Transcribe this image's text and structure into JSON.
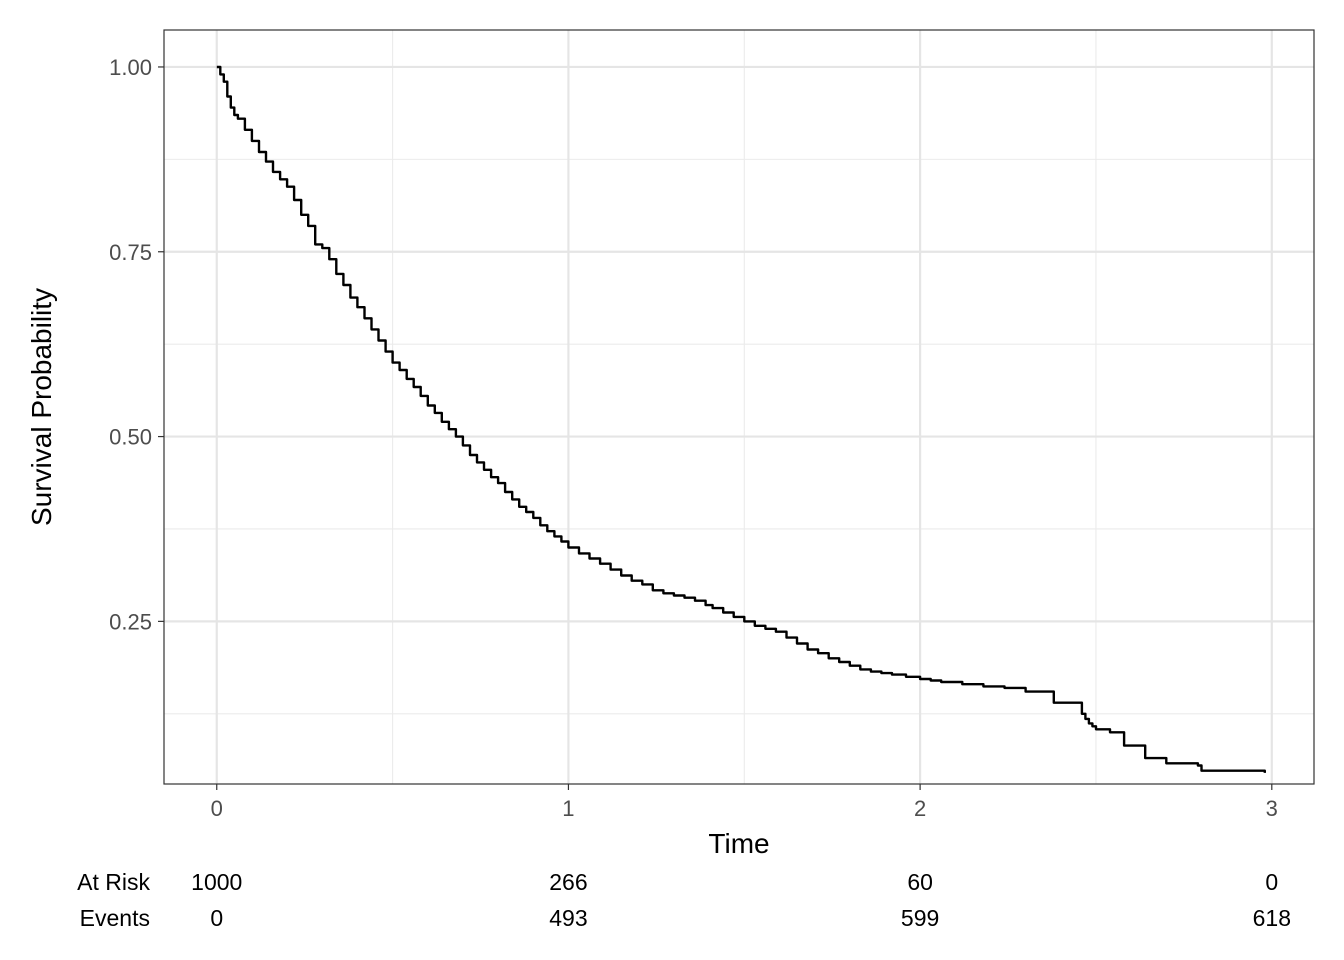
{
  "chart_data": {
    "type": "line",
    "xlabel": "Time",
    "ylabel": "Survival Probability",
    "xlim": [
      -0.15,
      3.12
    ],
    "ylim": [
      0.03,
      1.05
    ],
    "x_ticks": [
      0,
      1,
      2,
      3
    ],
    "x_tick_labels": [
      "0",
      "1",
      "2",
      "3"
    ],
    "x_minor_ticks": [
      0.5,
      1.5,
      2.5
    ],
    "y_ticks": [
      0.25,
      0.5,
      0.75,
      1.0
    ],
    "y_tick_labels": [
      "0.25",
      "0.50",
      "0.75",
      "1.00"
    ],
    "y_minor_ticks": [
      0.125,
      0.375,
      0.625,
      0.875
    ],
    "grid": true,
    "line_color": "#000000",
    "series": [
      {
        "step": true,
        "x": [
          0,
          0.01,
          0.02,
          0.03,
          0.04,
          0.05,
          0.06,
          0.08,
          0.1,
          0.12,
          0.14,
          0.16,
          0.18,
          0.2,
          0.22,
          0.24,
          0.26,
          0.28,
          0.3,
          0.32,
          0.34,
          0.36,
          0.38,
          0.4,
          0.42,
          0.44,
          0.46,
          0.48,
          0.5,
          0.52,
          0.54,
          0.56,
          0.58,
          0.6,
          0.62,
          0.64,
          0.66,
          0.68,
          0.7,
          0.72,
          0.74,
          0.76,
          0.78,
          0.8,
          0.82,
          0.84,
          0.86,
          0.88,
          0.9,
          0.92,
          0.94,
          0.96,
          0.98,
          1.0,
          1.03,
          1.06,
          1.09,
          1.12,
          1.15,
          1.18,
          1.21,
          1.24,
          1.27,
          1.3,
          1.33,
          1.36,
          1.39,
          1.41,
          1.44,
          1.47,
          1.5,
          1.53,
          1.56,
          1.59,
          1.62,
          1.65,
          1.68,
          1.71,
          1.74,
          1.77,
          1.8,
          1.83,
          1.86,
          1.89,
          1.92,
          1.96,
          2.0,
          2.03,
          2.06,
          2.12,
          2.18,
          2.24,
          2.3,
          2.38,
          2.46,
          2.47,
          2.48,
          2.49,
          2.5,
          2.54,
          2.58,
          2.64,
          2.7,
          2.79,
          2.8,
          2.98
        ],
        "y": [
          1.0,
          0.99,
          0.98,
          0.96,
          0.945,
          0.935,
          0.93,
          0.915,
          0.9,
          0.885,
          0.872,
          0.858,
          0.848,
          0.838,
          0.82,
          0.8,
          0.785,
          0.76,
          0.755,
          0.74,
          0.72,
          0.705,
          0.688,
          0.675,
          0.66,
          0.645,
          0.63,
          0.615,
          0.6,
          0.59,
          0.578,
          0.567,
          0.555,
          0.542,
          0.532,
          0.52,
          0.51,
          0.5,
          0.488,
          0.475,
          0.465,
          0.455,
          0.445,
          0.437,
          0.425,
          0.415,
          0.405,
          0.398,
          0.39,
          0.38,
          0.372,
          0.365,
          0.358,
          0.35,
          0.342,
          0.335,
          0.328,
          0.32,
          0.312,
          0.305,
          0.3,
          0.292,
          0.288,
          0.285,
          0.282,
          0.278,
          0.272,
          0.268,
          0.262,
          0.256,
          0.25,
          0.244,
          0.24,
          0.236,
          0.228,
          0.22,
          0.212,
          0.207,
          0.2,
          0.195,
          0.19,
          0.185,
          0.182,
          0.18,
          0.178,
          0.175,
          0.172,
          0.17,
          0.168,
          0.165,
          0.162,
          0.16,
          0.155,
          0.14,
          0.125,
          0.118,
          0.112,
          0.108,
          0.104,
          0.1,
          0.082,
          0.065,
          0.058,
          0.055,
          0.048,
          0.045
        ]
      }
    ],
    "risk_table": {
      "times": [
        0,
        1,
        2,
        3
      ],
      "rows": [
        {
          "label": "At Risk",
          "values": [
            "1000",
            "266",
            "60",
            "0"
          ]
        },
        {
          "label": "Events",
          "values": [
            "0",
            "493",
            "599",
            "618"
          ]
        }
      ]
    }
  }
}
